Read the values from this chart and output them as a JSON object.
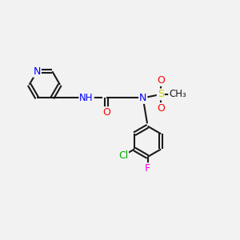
{
  "bg_color": "#f2f2f2",
  "bond_color": "#1a1a1a",
  "bond_width": 1.5,
  "atom_colors": {
    "N": "#0000ff",
    "O": "#ff0000",
    "Cl": "#00aa00",
    "F": "#ff00ff",
    "S": "#cccc00",
    "C": "#1a1a1a",
    "H": "#444444",
    "NH": "#0000ff"
  },
  "figsize": [
    3.0,
    3.0
  ],
  "dpi": 100
}
